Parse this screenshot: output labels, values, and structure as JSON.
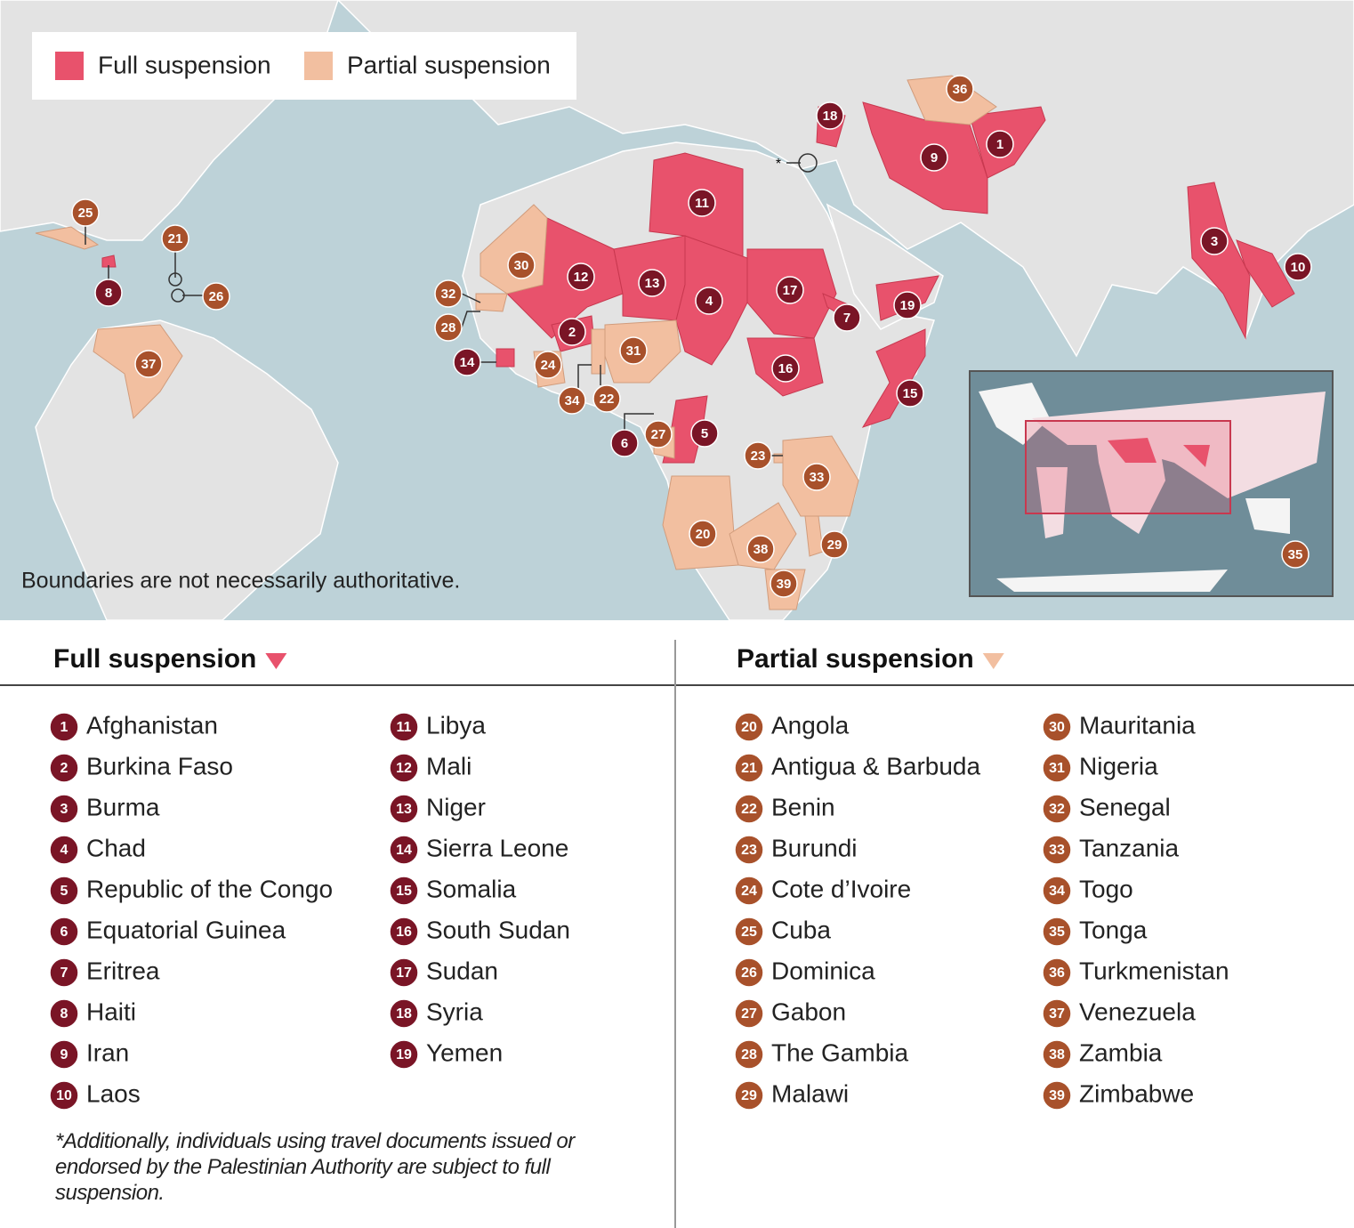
{
  "legend": {
    "full": "Full suspension",
    "partial": "Partial suspension"
  },
  "map_note": "Boundaries are not necessarily authoritative.",
  "asterisk": "*",
  "full_suspension": {
    "title": "Full suspension",
    "countries": [
      {
        "number": "1",
        "name": "Afghanistan"
      },
      {
        "number": "2",
        "name": "Burkina Faso"
      },
      {
        "number": "3",
        "name": "Burma"
      },
      {
        "number": "4",
        "name": "Chad"
      },
      {
        "number": "5",
        "name": "Republic of the Congo"
      },
      {
        "number": "6",
        "name": "Equatorial Guinea"
      },
      {
        "number": "7",
        "name": "Eritrea"
      },
      {
        "number": "8",
        "name": "Haiti"
      },
      {
        "number": "9",
        "name": "Iran"
      },
      {
        "number": "10",
        "name": "Laos"
      },
      {
        "number": "11",
        "name": "Libya"
      },
      {
        "number": "12",
        "name": "Mali"
      },
      {
        "number": "13",
        "name": "Niger"
      },
      {
        "number": "14",
        "name": "Sierra Leone"
      },
      {
        "number": "15",
        "name": "Somalia"
      },
      {
        "number": "16",
        "name": "South Sudan"
      },
      {
        "number": "17",
        "name": "Sudan"
      },
      {
        "number": "18",
        "name": "Syria"
      },
      {
        "number": "19",
        "name": "Yemen"
      }
    ]
  },
  "partial_suspension": {
    "title": "Partial suspension",
    "countries": [
      {
        "number": "20",
        "name": "Angola"
      },
      {
        "number": "21",
        "name": "Antigua & Barbuda"
      },
      {
        "number": "22",
        "name": "Benin"
      },
      {
        "number": "23",
        "name": "Burundi"
      },
      {
        "number": "24",
        "name": "Cote d’Ivoire"
      },
      {
        "number": "25",
        "name": "Cuba"
      },
      {
        "number": "26",
        "name": "Dominica"
      },
      {
        "number": "27",
        "name": "Gabon"
      },
      {
        "number": "28",
        "name": "The Gambia"
      },
      {
        "number": "29",
        "name": "Malawi"
      },
      {
        "number": "30",
        "name": "Mauritania"
      },
      {
        "number": "31",
        "name": "Nigeria"
      },
      {
        "number": "32",
        "name": "Senegal"
      },
      {
        "number": "33",
        "name": "Tanzania"
      },
      {
        "number": "34",
        "name": "Togo"
      },
      {
        "number": "35",
        "name": "Tonga"
      },
      {
        "number": "36",
        "name": "Turkmenistan"
      },
      {
        "number": "37",
        "name": "Venezuela"
      },
      {
        "number": "38",
        "name": "Zambia"
      },
      {
        "number": "39",
        "name": "Zimbabwe"
      }
    ]
  },
  "footnote": "*Additionally, individuals using travel documents issued or endorsed by the Palestinian Authority are subject to full suspension."
}
